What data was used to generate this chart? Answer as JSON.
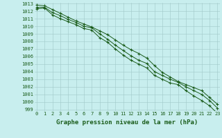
{
  "title": "Graphe pression niveau de la mer (hPa)",
  "x": [
    0,
    1,
    2,
    3,
    4,
    5,
    6,
    7,
    8,
    9,
    10,
    11,
    12,
    13,
    14,
    15,
    16,
    17,
    18,
    19,
    20,
    21,
    22,
    23
  ],
  "line_min": [
    1012.3,
    1012.4,
    1011.5,
    1011.0,
    1010.6,
    1010.2,
    1009.7,
    1009.5,
    1008.5,
    1007.9,
    1007.0,
    1006.2,
    1005.5,
    1005.0,
    1004.5,
    1003.5,
    1003.0,
    1002.5,
    1002.3,
    1001.5,
    1000.8,
    1000.2,
    999.5,
    998.5
  ],
  "line_mid": [
    1012.5,
    1012.5,
    1011.8,
    1011.4,
    1010.9,
    1010.5,
    1010.0,
    1009.8,
    1009.0,
    1008.3,
    1007.5,
    1006.8,
    1006.1,
    1005.5,
    1005.1,
    1004.0,
    1003.5,
    1003.0,
    1002.6,
    1002.0,
    1001.5,
    1001.0,
    1000.2,
    999.2
  ],
  "line_max": [
    1012.8,
    1012.7,
    1012.2,
    1011.7,
    1011.2,
    1010.7,
    1010.3,
    1009.9,
    1009.4,
    1008.9,
    1008.2,
    1007.5,
    1006.9,
    1006.4,
    1005.8,
    1004.8,
    1003.9,
    1003.3,
    1002.7,
    1002.3,
    1001.9,
    1001.5,
    1000.6,
    999.7
  ],
  "line_color": "#1a5c1a",
  "bg_color": "#c8eeee",
  "grid_color": "#a0c8c8",
  "text_color": "#1a5c1a",
  "ylim_min": 999,
  "ylim_max": 1013,
  "yticks": [
    999,
    1000,
    1001,
    1002,
    1003,
    1004,
    1005,
    1006,
    1007,
    1008,
    1009,
    1010,
    1011,
    1012,
    1013
  ],
  "xticks": [
    0,
    1,
    2,
    3,
    4,
    5,
    6,
    7,
    8,
    9,
    10,
    11,
    12,
    13,
    14,
    15,
    16,
    17,
    18,
    19,
    20,
    21,
    22,
    23
  ],
  "marker": "+",
  "tick_fontsize": 5.0,
  "xlabel_fontsize": 6.5,
  "linewidth": 0.7,
  "markersize": 3.5
}
